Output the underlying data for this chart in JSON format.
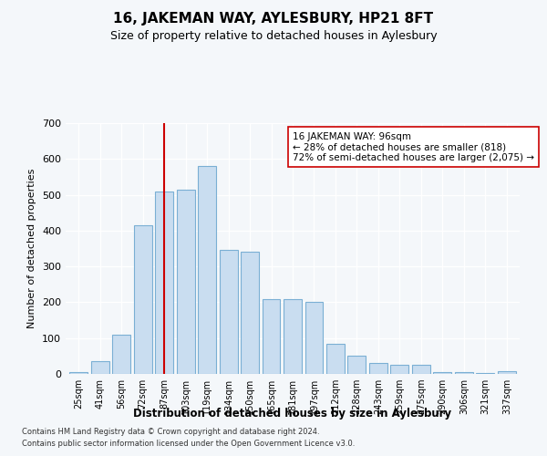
{
  "title": "16, JAKEMAN WAY, AYLESBURY, HP21 8FT",
  "subtitle": "Size of property relative to detached houses in Aylesbury",
  "xlabel": "Distribution of detached houses by size in Aylesbury",
  "ylabel": "Number of detached properties",
  "categories": [
    "25sqm",
    "41sqm",
    "56sqm",
    "72sqm",
    "87sqm",
    "103sqm",
    "119sqm",
    "134sqm",
    "150sqm",
    "165sqm",
    "181sqm",
    "197sqm",
    "212sqm",
    "228sqm",
    "243sqm",
    "259sqm",
    "275sqm",
    "290sqm",
    "306sqm",
    "321sqm",
    "337sqm"
  ],
  "values": [
    5,
    35,
    110,
    415,
    510,
    515,
    580,
    345,
    340,
    210,
    210,
    200,
    85,
    50,
    30,
    25,
    25,
    5,
    5,
    2,
    8
  ],
  "bar_color": "#c9ddf0",
  "bar_edge_color": "#7aafd4",
  "vline_x_index": 4,
  "vline_color": "#cc0000",
  "annotation_text": "16 JAKEMAN WAY: 96sqm\n← 28% of detached houses are smaller (818)\n72% of semi-detached houses are larger (2,075) →",
  "annotation_box_color": "#ffffff",
  "annotation_box_edge": "#cc0000",
  "ylim": [
    0,
    700
  ],
  "yticks": [
    0,
    100,
    200,
    300,
    400,
    500,
    600,
    700
  ],
  "footer1": "Contains HM Land Registry data © Crown copyright and database right 2024.",
  "footer2": "Contains public sector information licensed under the Open Government Licence v3.0.",
  "bg_color": "#f4f7fa",
  "plot_bg_color": "#f4f7fa",
  "grid_color": "#ffffff",
  "title_fontsize": 11,
  "subtitle_fontsize": 9,
  "ylabel_fontsize": 8,
  "xlabel_fontsize": 8.5,
  "tick_fontsize": 7,
  "footer_fontsize": 6,
  "annot_fontsize": 7.5
}
